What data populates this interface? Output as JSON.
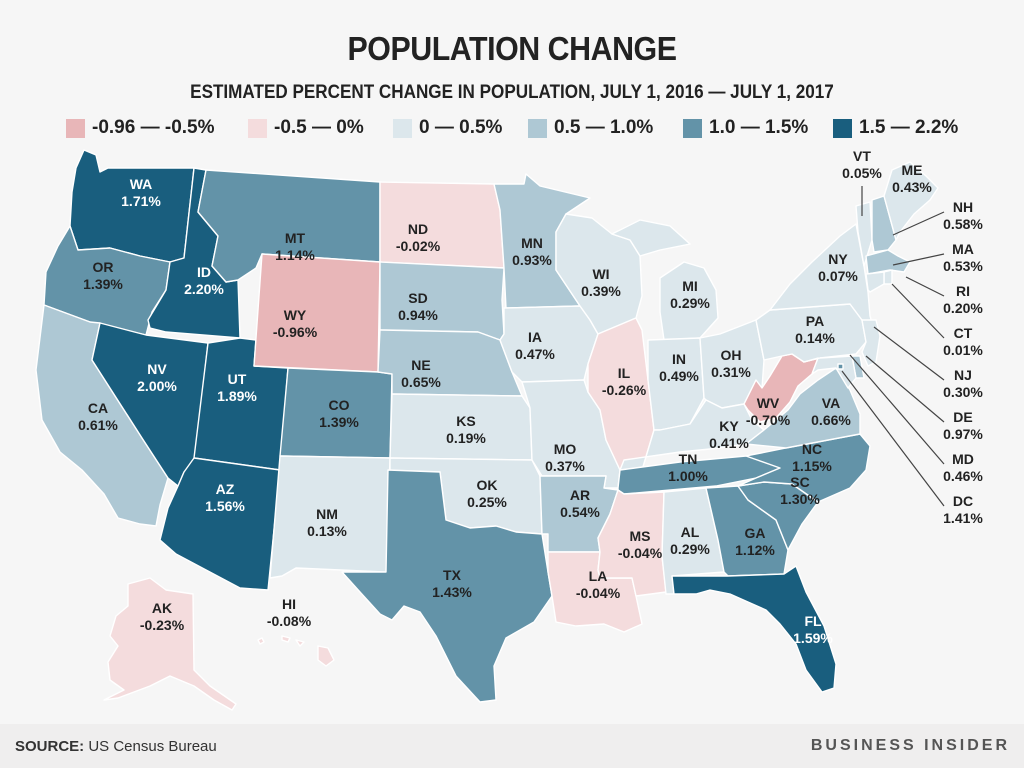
{
  "title": "POPULATION CHANGE",
  "subtitle": "ESTIMATED PERCENT CHANGE IN POPULATION, JULY 1, 2016 — JULY 1, 2017",
  "legend": [
    {
      "label": "-0.96 — -0.5%",
      "color": "#e8b6b8"
    },
    {
      "label": "-0.5 — 0%",
      "color": "#f4dcdd"
    },
    {
      "label": "0 — 0.5%",
      "color": "#dce7ec"
    },
    {
      "label": "0.5 — 1.0%",
      "color": "#aec8d4"
    },
    {
      "label": "1.0 — 1.5%",
      "color": "#6393a8"
    },
    {
      "label": "1.5 — 2.2%",
      "color": "#195e7e"
    }
  ],
  "states": {
    "WA": {
      "name": "WA",
      "value": "1.71%",
      "bin": 5
    },
    "OR": {
      "name": "OR",
      "value": "1.39%",
      "bin": 4
    },
    "CA": {
      "name": "CA",
      "value": "0.61%",
      "bin": 3
    },
    "ID": {
      "name": "ID",
      "value": "2.20%",
      "bin": 5
    },
    "NV": {
      "name": "NV",
      "value": "2.00%",
      "bin": 5
    },
    "UT": {
      "name": "UT",
      "value": "1.89%",
      "bin": 5
    },
    "AZ": {
      "name": "AZ",
      "value": "1.56%",
      "bin": 5
    },
    "MT": {
      "name": "MT",
      "value": "1.14%",
      "bin": 4
    },
    "WY": {
      "name": "WY",
      "value": "-0.96%",
      "bin": 0
    },
    "CO": {
      "name": "CO",
      "value": "1.39%",
      "bin": 4
    },
    "NM": {
      "name": "NM",
      "value": "0.13%",
      "bin": 2
    },
    "ND": {
      "name": "ND",
      "value": "-0.02%",
      "bin": 1
    },
    "SD": {
      "name": "SD",
      "value": "0.94%",
      "bin": 3
    },
    "NE": {
      "name": "NE",
      "value": "0.65%",
      "bin": 3
    },
    "KS": {
      "name": "KS",
      "value": "0.19%",
      "bin": 2
    },
    "OK": {
      "name": "OK",
      "value": "0.25%",
      "bin": 2
    },
    "TX": {
      "name": "TX",
      "value": "1.43%",
      "bin": 4
    },
    "MN": {
      "name": "MN",
      "value": "0.93%",
      "bin": 3
    },
    "IA": {
      "name": "IA",
      "value": "0.47%",
      "bin": 2
    },
    "MO": {
      "name": "MO",
      "value": "0.37%",
      "bin": 2
    },
    "AR": {
      "name": "AR",
      "value": "0.54%",
      "bin": 3
    },
    "LA": {
      "name": "LA",
      "value": "-0.04%",
      "bin": 1
    },
    "WI": {
      "name": "WI",
      "value": "0.39%",
      "bin": 2
    },
    "IL": {
      "name": "IL",
      "value": "-0.26%",
      "bin": 1
    },
    "MI": {
      "name": "MI",
      "value": "0.29%",
      "bin": 2
    },
    "IN": {
      "name": "IN",
      "value": "0.49%",
      "bin": 2
    },
    "OH": {
      "name": "OH",
      "value": "0.31%",
      "bin": 2
    },
    "KY": {
      "name": "KY",
      "value": "0.41%",
      "bin": 2
    },
    "TN": {
      "name": "TN",
      "value": "1.00%",
      "bin": 4
    },
    "MS": {
      "name": "MS",
      "value": "-0.04%",
      "bin": 1
    },
    "AL": {
      "name": "AL",
      "value": "0.29%",
      "bin": 2
    },
    "GA": {
      "name": "GA",
      "value": "1.12%",
      "bin": 4
    },
    "FL": {
      "name": "FL",
      "value": "1.59%",
      "bin": 5
    },
    "SC": {
      "name": "SC",
      "value": "1.30%",
      "bin": 4
    },
    "NC": {
      "name": "NC",
      "value": "1.15%",
      "bin": 4
    },
    "VA": {
      "name": "VA",
      "value": "0.66%",
      "bin": 3
    },
    "WV": {
      "name": "WV",
      "value": "-0.70%",
      "bin": 0
    },
    "PA": {
      "name": "PA",
      "value": "0.14%",
      "bin": 2
    },
    "NY": {
      "name": "NY",
      "value": "0.07%",
      "bin": 2
    },
    "VT": {
      "name": "VT",
      "value": "0.05%",
      "bin": 2
    },
    "ME": {
      "name": "ME",
      "value": "0.43%",
      "bin": 2
    },
    "NH": {
      "name": "NH",
      "value": "0.58%",
      "bin": 3
    },
    "MA": {
      "name": "MA",
      "value": "0.53%",
      "bin": 3
    },
    "RI": {
      "name": "RI",
      "value": "0.20%",
      "bin": 2
    },
    "CT": {
      "name": "CT",
      "value": "0.01%",
      "bin": 2
    },
    "NJ": {
      "name": "NJ",
      "value": "0.30%",
      "bin": 2
    },
    "DE": {
      "name": "DE",
      "value": "0.97%",
      "bin": 3
    },
    "MD": {
      "name": "MD",
      "value": "0.46%",
      "bin": 2
    },
    "DC": {
      "name": "DC",
      "value": "1.41%",
      "bin": 4
    },
    "AK": {
      "name": "AK",
      "value": "-0.23%",
      "bin": 1
    },
    "HI": {
      "name": "HI",
      "value": "-0.08%",
      "bin": 1
    }
  },
  "footer": {
    "source_label": "SOURCE:",
    "source_text": "US Census Bureau",
    "brand": "BUSINESS INSIDER"
  }
}
